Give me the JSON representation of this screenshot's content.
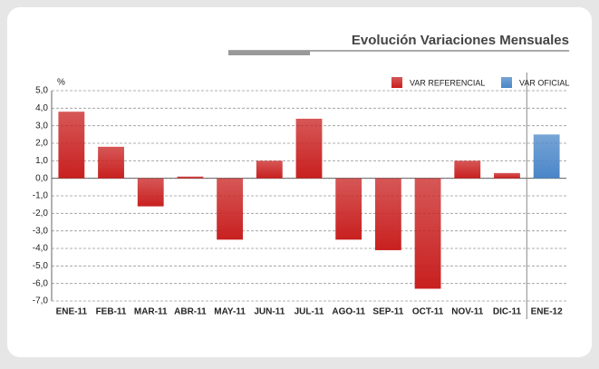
{
  "chart_data": {
    "type": "bar",
    "title": "Evolución Variaciones Mensuales",
    "y_label": "%",
    "categories": [
      "ENE-11",
      "FEB-11",
      "MAR-11",
      "ABR-11",
      "MAY-11",
      "JUN-11",
      "JUL-11",
      "AGO-11",
      "SEP-11",
      "OCT-11",
      "NOV-11",
      "DIC-11",
      "ENE-12"
    ],
    "series": [
      {
        "name": "VAR REFERENCIAL",
        "color": "#c8201f",
        "values": [
          3.8,
          1.8,
          -1.6,
          0.1,
          -3.5,
          1.0,
          3.4,
          -3.5,
          -4.1,
          -6.3,
          1.0,
          0.3,
          null
        ]
      },
      {
        "name": "VAR OFICIAL",
        "color": "#4a86c8",
        "values": [
          null,
          null,
          null,
          null,
          null,
          null,
          null,
          null,
          null,
          null,
          null,
          null,
          2.5
        ]
      }
    ],
    "ylim": [
      -7,
      5
    ],
    "yticks": [
      {
        "value": -7,
        "label": "-7,0"
      },
      {
        "value": -6,
        "label": "-6,0"
      },
      {
        "value": -5,
        "label": "-5,0"
      },
      {
        "value": -4,
        "label": "-4,0"
      },
      {
        "value": -3,
        "label": "-3,0"
      },
      {
        "value": -2,
        "label": "-2,0"
      },
      {
        "value": -1,
        "label": "-1,0"
      },
      {
        "value": 0,
        "label": "0,0"
      },
      {
        "value": 1,
        "label": "1,0"
      },
      {
        "value": 2,
        "label": "2,0"
      },
      {
        "value": 3,
        "label": "3,0"
      },
      {
        "value": 4,
        "label": "4,0"
      },
      {
        "value": 5,
        "label": "5,0"
      }
    ],
    "grid": true,
    "legend": "top-right"
  }
}
